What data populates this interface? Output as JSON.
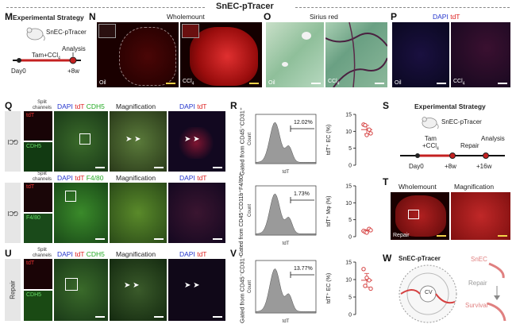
{
  "figure_title": "SnEC-pTracer",
  "panels": {
    "M": {
      "letter": "M",
      "title": "Experimental Strategy",
      "mouse": "SnEC-pTracer",
      "treat": "Tam+CCl",
      "treat_sub": "4",
      "analysis": "Analysis",
      "day0": "Day0",
      "end": "+8w"
    },
    "N": {
      "letter": "N",
      "title": "Wholemount",
      "oil": "Oil",
      "ccl": "CCl",
      "ccl_sub": "4"
    },
    "O": {
      "letter": "O",
      "title": "Sirius red",
      "oil": "Oil",
      "ccl": "CCl",
      "ccl_sub": "4"
    },
    "P": {
      "letter": "P",
      "dapi": "DAPI",
      "tdt": "tdT",
      "oil": "Oil",
      "ccl": "CCl",
      "ccl_sub": "4"
    },
    "Q": {
      "letter": "Q",
      "split": "Split channels",
      "magn": "Magnification",
      "row1": {
        "label": "CCl",
        "label_sub": "4",
        "merge_dapi": "DAPI",
        "merge_tdt": "tdT",
        "merge_m": "CDH5",
        "s1": "tdT",
        "s2": "CDH5"
      },
      "row2": {
        "label": "CCl",
        "label_sub": "4",
        "merge_dapi": "DAPI",
        "merge_tdt": "tdT",
        "merge_m": "F4/80",
        "s1": "tdT",
        "s2": "F4/80"
      }
    },
    "R": {
      "letter": "R",
      "h1": {
        "gate": "Gated from CD45⁻CD31⁺",
        "pct": "12.02%",
        "count": "Count",
        "x": "tdT"
      },
      "h2": {
        "gate": "Gated from CD45⁺CD11b⁺F4/80⁺",
        "pct": "1.73%",
        "count": "Count",
        "x": "tdT"
      },
      "p1": {
        "ylabel": "tdT⁺ EC (%)",
        "ticks": [
          "0",
          "5",
          "10",
          "15"
        ]
      },
      "p2": {
        "ylabel": "tdT⁺ Mφ (%)",
        "ticks": [
          "0",
          "5",
          "10",
          "15"
        ]
      }
    },
    "S": {
      "letter": "S",
      "title": "Experimental Strategy",
      "mouse": "SnEC-pTracer",
      "treat": "Tam",
      "treat2": "+CCl",
      "treat_sub": "4",
      "repair": "Repair",
      "analysis": "Analysis",
      "day0": "Day0",
      "w8": "+8w",
      "w16": "+16w"
    },
    "T": {
      "letter": "T",
      "whole": "Wholemount",
      "magn": "Magnification",
      "repair": "Repair"
    },
    "U": {
      "letter": "U",
      "split": "Split channels",
      "magn": "Magnification",
      "label": "Repair",
      "merge_dapi": "DAPI",
      "merge_tdt": "tdT",
      "merge_m": "CDH5",
      "s1": "tdT",
      "s2": "CDH5"
    },
    "V": {
      "letter": "V",
      "gate": "Gated from CD45⁻CD31⁺",
      "pct": "13.77%",
      "count": "Count",
      "x": "tdT",
      "ylabel": "tdT⁺ EC (%)",
      "ticks": [
        "0",
        "5",
        "10",
        "15"
      ]
    },
    "W": {
      "letter": "W",
      "title": "SnEC-pTracer",
      "cv": "CV",
      "snec": "SnEC",
      "repair": "Repair",
      "survival": "Survival"
    }
  },
  "chart_data": [
    {
      "type": "scatter",
      "panel": "R-top",
      "ylabel": "tdT⁺ EC (%)",
      "ylim": [
        0,
        15
      ],
      "values": [
        12.0,
        10.5,
        11.8,
        9.4,
        8.9
      ],
      "mean": 10.5
    },
    {
      "type": "scatter",
      "panel": "R-bottom",
      "ylabel": "tdT⁺ Mφ (%)",
      "ylim": [
        0,
        15
      ],
      "values": [
        1.7,
        2.3,
        1.4,
        1.9,
        1.2
      ],
      "mean": 1.7
    },
    {
      "type": "scatter",
      "panel": "V",
      "ylabel": "tdT⁺ EC (%)",
      "ylim": [
        0,
        15
      ],
      "values": [
        13.0,
        9.8,
        8.2,
        7.4,
        10.5
      ],
      "mean": 9.8
    }
  ],
  "colors": {
    "accent_red": "#d02a2a",
    "flow_fill": "#9a9a9a",
    "dot_red": "#d54040"
  }
}
